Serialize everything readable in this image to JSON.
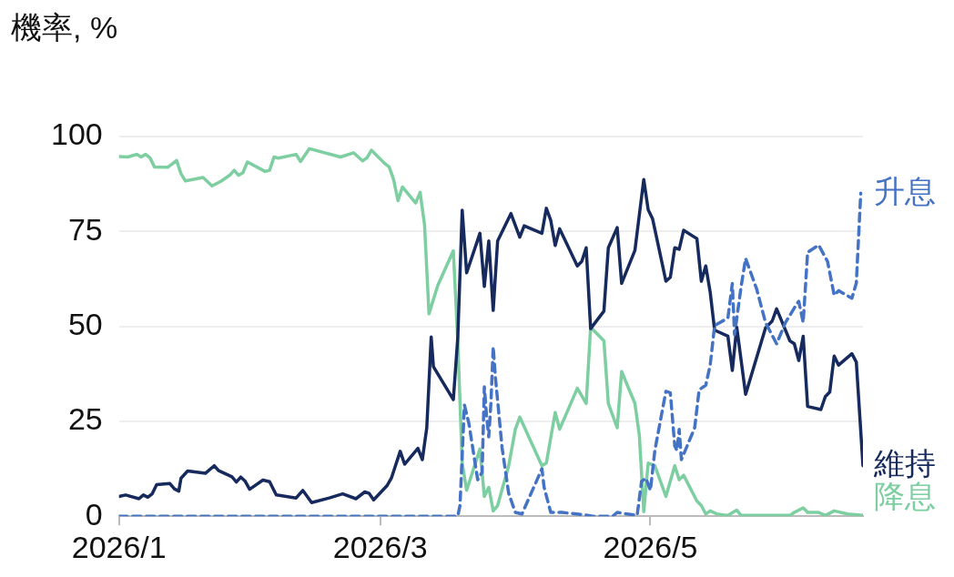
{
  "chart_data": {
    "type": "line",
    "ylabel": "機率, %",
    "xlim": [
      "2026-01-01",
      "2026-06-18"
    ],
    "ylim": [
      0,
      100
    ],
    "xticks": [
      {
        "value": "2026-01-01",
        "label": "2026/1"
      },
      {
        "value": "2026-03-01",
        "label": "2026/3"
      },
      {
        "value": "2026-05-01",
        "label": "2026/5"
      }
    ],
    "yticks": [
      0,
      25,
      50,
      75,
      100
    ],
    "grid": "y",
    "legend": false,
    "marker": "none",
    "series": [
      {
        "name": "升息",
        "color": "#4472c4",
        "line_style": "dashed",
        "x": [
          "2026-01-01",
          "2026-03-18T12:00",
          "2026-03-19",
          "2026-03-20",
          "2026-03-21",
          "2026-03-23",
          "2026-03-24",
          "2026-03-24T12:00",
          "2026-03-25",
          "2026-03-25T12:00",
          "2026-03-26",
          "2026-03-26T12:00",
          "2026-03-27",
          "2026-03-28T12:00",
          "2026-03-30",
          "2026-03-31T12:00",
          "2026-04-02",
          "2026-04-04T12:00",
          "2026-04-06T12:00",
          "2026-04-07",
          "2026-04-08T12:00",
          "2026-04-11",
          "2026-04-16",
          "2026-04-18",
          "2026-04-22T12:00",
          "2026-04-23T12:00",
          "2026-04-28",
          "2026-04-29",
          "2026-04-30",
          "2026-05-01",
          "2026-05-02",
          "2026-05-04T12:00",
          "2026-05-05T12:00",
          "2026-05-06T12:00",
          "2026-05-07",
          "2026-05-07T12:00",
          "2026-05-08",
          "2026-05-11",
          "2026-05-12",
          "2026-05-13T12:00",
          "2026-05-14T12:00",
          "2026-05-15T12:00",
          "2026-05-18T12:00",
          "2026-05-19T12:00",
          "2026-05-20",
          "2026-05-21T12:00",
          "2026-05-22T12:00",
          "2026-05-25",
          "2026-05-27",
          "2026-05-29T12:00",
          "2026-05-31T12:00",
          "2026-06-03",
          "2026-06-03T12:00",
          "2026-06-04T12:00",
          "2026-06-05T12:00",
          "2026-06-08",
          "2026-06-10",
          "2026-06-11T12:00",
          "2026-06-12T12:00",
          "2026-06-15T12:00",
          "2026-06-16T12:00",
          "2026-06-17T12:00"
        ],
        "values": [
          0,
          0,
          2.8,
          29.3,
          24.5,
          9.6,
          11.6,
          34.1,
          26.5,
          20.9,
          30.1,
          44.6,
          36.6,
          18.1,
          6,
          1,
          0.6,
          7.2,
          12.5,
          7.6,
          1,
          1,
          0.4,
          0,
          0,
          1,
          0.2,
          9.2,
          10,
          6.8,
          17.3,
          32.9,
          32.5,
          18.5,
          17.3,
          22.9,
          14.9,
          23.3,
          33.3,
          34.5,
          39.8,
          50.2,
          52.2,
          61.3,
          47.8,
          60.6,
          67.9,
          59.8,
          51,
          45.4,
          51,
          55.8,
          56.6,
          51,
          69.5,
          71.4,
          67.1,
          58.2,
          59.4,
          57.4,
          61.4,
          85.1
        ]
      },
      {
        "name": "維持",
        "color": "#172a5e",
        "line_style": "solid",
        "x": [
          "2026-01-01",
          "2026-01-02T12:00",
          "2026-01-05T12:00",
          "2026-01-06T12:00",
          "2026-01-07T12:00",
          "2026-01-08T12:00",
          "2026-01-09T12:00",
          "2026-01-12T12:00",
          "2026-01-13T12:00",
          "2026-01-14T12:00",
          "2026-01-15",
          "2026-01-16T12:00",
          "2026-01-20T12:00",
          "2026-01-22T12:00",
          "2026-01-23T12:00",
          "2026-01-26T12:00",
          "2026-01-27T12:00",
          "2026-01-28T12:00",
          "2026-01-29T12:00",
          "2026-01-30T12:00",
          "2026-02-02T12:00",
          "2026-02-04",
          "2026-02-05T12:00",
          "2026-02-10",
          "2026-02-11T12:00",
          "2026-02-13T12:00",
          "2026-02-17T12:00",
          "2026-02-20T12:00",
          "2026-02-23T12:00",
          "2026-02-25T12:00",
          "2026-02-26T12:00",
          "2026-02-27T12:00",
          "2026-03-02T12:00",
          "2026-03-03T12:00",
          "2026-03-05T12:00",
          "2026-03-06T12:00",
          "2026-03-09T12:00",
          "2026-03-10T12:00",
          "2026-03-11T12:00",
          "2026-03-12T12:00",
          "2026-03-13",
          "2026-03-17T12:00",
          "2026-03-18T12:00",
          "2026-03-19T12:00",
          "2026-03-20T12:00",
          "2026-03-23T12:00",
          "2026-03-24T12:00",
          "2026-03-25T12:00",
          "2026-03-26T12:00",
          "2026-03-27T12:00",
          "2026-03-30T12:00",
          "2026-04-01T12:00",
          "2026-04-02T12:00",
          "2026-04-06T12:00",
          "2026-04-07T12:00",
          "2026-04-08T12:00",
          "2026-04-09T12:00",
          "2026-04-10T12:00",
          "2026-04-14T12:00",
          "2026-04-15T12:00",
          "2026-04-16T12:00",
          "2026-04-17T12:00",
          "2026-04-20T12:00",
          "2026-04-21T12:00",
          "2026-04-23T12:00",
          "2026-04-24T12:00",
          "2026-04-27T12:00",
          "2026-04-29T12:00",
          "2026-04-30T12:00",
          "2026-05-01T12:00",
          "2026-05-04T12:00",
          "2026-05-05T12:00",
          "2026-05-06T12:00",
          "2026-05-07T12:00",
          "2026-05-08T12:00",
          "2026-05-11T12:00",
          "2026-05-12T12:00",
          "2026-05-13T12:00",
          "2026-05-14T12:00",
          "2026-05-15T12:00",
          "2026-05-18T12:00",
          "2026-05-19T12:00",
          "2026-05-20T12:00",
          "2026-05-22T12:00",
          "2026-05-27",
          "2026-05-28T12:00",
          "2026-05-29T12:00",
          "2026-06-01T12:00",
          "2026-06-02T12:00",
          "2026-06-03T12:00",
          "2026-06-04T12:00",
          "2026-06-05T12:00",
          "2026-06-08T12:00",
          "2026-06-09T12:00",
          "2026-06-10T12:00",
          "2026-06-11T12:00",
          "2026-06-12T12:00",
          "2026-06-15T12:00",
          "2026-06-16T12:00",
          "2026-06-18"
        ],
        "values": [
          5.2,
          5.6,
          4.6,
          5.6,
          5,
          5.9,
          8.3,
          8.6,
          7.2,
          6.6,
          10,
          11.9,
          11.3,
          13.3,
          12,
          10.4,
          9,
          10.3,
          9.2,
          7.1,
          9.5,
          9.1,
          5.6,
          4.8,
          6.8,
          3.6,
          4.8,
          5.9,
          4.6,
          6.4,
          6,
          4.3,
          8,
          10,
          17.1,
          13.7,
          17.9,
          14.9,
          23.3,
          47.2,
          39.4,
          30.7,
          47,
          80.6,
          64.1,
          74.5,
          60.5,
          72.5,
          54.2,
          72.5,
          79.7,
          73.5,
          76.5,
          74.5,
          81.1,
          77.9,
          71.3,
          75.7,
          65.9,
          67.1,
          70.7,
          49.4,
          54,
          70.7,
          76,
          61.3,
          70,
          88.7,
          80.7,
          78.3,
          61.9,
          62.9,
          70.7,
          70.3,
          75.3,
          73.1,
          61.9,
          65.9,
          59,
          49,
          47.4,
          38.4,
          49.8,
          32.1,
          49.6,
          51.4,
          54.6,
          46.2,
          45.4,
          41,
          47.4,
          28.9,
          28.1,
          31.5,
          32.7,
          42.2,
          39.8,
          42.8,
          40.6,
          13.3
        ]
      },
      {
        "name": "降息",
        "color": "#7dcea0",
        "line_style": "solid",
        "x": [
          "2026-01-01",
          "2026-01-03",
          "2026-01-05",
          "2026-01-06",
          "2026-01-07",
          "2026-01-08",
          "2026-01-09",
          "2026-01-12",
          "2026-01-14",
          "2026-01-15",
          "2026-01-16",
          "2026-01-20",
          "2026-01-22",
          "2026-01-24",
          "2026-01-26",
          "2026-01-27",
          "2026-01-28",
          "2026-01-29",
          "2026-01-30",
          "2026-02-03",
          "2026-02-04",
          "2026-02-05",
          "2026-02-06",
          "2026-02-10",
          "2026-02-11",
          "2026-02-13",
          "2026-02-20",
          "2026-02-23",
          "2026-02-25",
          "2026-02-26",
          "2026-02-27",
          "2026-03-02",
          "2026-03-03",
          "2026-03-04",
          "2026-03-05",
          "2026-03-06",
          "2026-03-09",
          "2026-03-10",
          "2026-03-11",
          "2026-03-12",
          "2026-03-14",
          "2026-03-17T12:00",
          "2026-03-18T12:00",
          "2026-03-19T12:00",
          "2026-03-20T12:00",
          "2026-03-23T12:00",
          "2026-03-24T12:00",
          "2026-03-25T12:00",
          "2026-03-26T12:00",
          "2026-03-27T12:00",
          "2026-03-30",
          "2026-03-31T12:00",
          "2026-04-01T12:00",
          "2026-04-06T12:00",
          "2026-04-07T12:00",
          "2026-04-09T12:00",
          "2026-04-10T12:00",
          "2026-04-14T12:00",
          "2026-04-16T12:00",
          "2026-04-17T12:00",
          "2026-04-20T12:00",
          "2026-04-21T12:00",
          "2026-04-23T12:00",
          "2026-04-24T12:00",
          "2026-04-27T12:00",
          "2026-04-28T12:00",
          "2026-04-29T12:00",
          "2026-04-30T12:00",
          "2026-05-02",
          "2026-05-04T12:00",
          "2026-05-06T12:00",
          "2026-05-07T12:00",
          "2026-05-08T12:00",
          "2026-05-11T12:00",
          "2026-05-12T12:00",
          "2026-05-13T12:00",
          "2026-05-14T12:00",
          "2026-05-16",
          "2026-05-18T12:00",
          "2026-05-20T12:00",
          "2026-05-21T12:00",
          "2026-06-01T12:00",
          "2026-06-02T12:00",
          "2026-06-04T12:00",
          "2026-06-05T12:00",
          "2026-06-08",
          "2026-06-09T12:00",
          "2026-06-11T12:00",
          "2026-06-14T12:00",
          "2026-06-18"
        ],
        "values": [
          94.7,
          94.6,
          95.3,
          94.6,
          95.3,
          94.4,
          92,
          91.9,
          93.7,
          90.2,
          88.3,
          89.2,
          87,
          88.2,
          89.8,
          91.1,
          89.8,
          90.5,
          93.3,
          90.8,
          91.1,
          94.6,
          94.3,
          95.3,
          93.4,
          96.8,
          94.6,
          95.7,
          93.6,
          94.4,
          96.4,
          92.9,
          92,
          88.7,
          83.1,
          86.7,
          82.5,
          85.3,
          76.7,
          53.3,
          60.8,
          69.9,
          46.2,
          14,
          6.8,
          17.7,
          5.2,
          7.6,
          1.4,
          2.8,
          13.3,
          22.9,
          26.1,
          13.3,
          14,
          27.3,
          22.9,
          33.7,
          29.7,
          49.8,
          46.2,
          29.7,
          23.3,
          38.1,
          29.7,
          21.3,
          1.2,
          14,
          13.3,
          5.2,
          13.3,
          9.6,
          10.8,
          4,
          2.8,
          0.6,
          1.4,
          0.6,
          0.2,
          1.6,
          0.2,
          0.2,
          1,
          2.2,
          1,
          1,
          0.2,
          1.4,
          0.6,
          0.2
        ]
      }
    ]
  }
}
